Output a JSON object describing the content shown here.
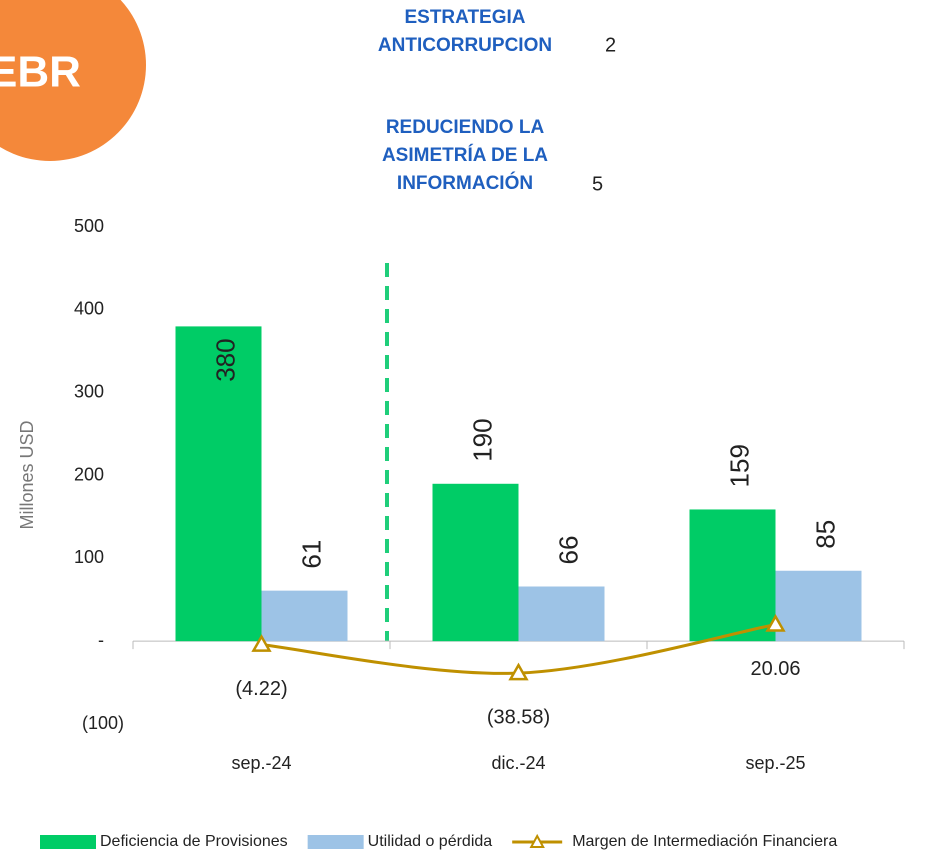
{
  "chart_data": {
    "type": "bar_line",
    "badge": "EBR",
    "annotations": [
      {
        "lines": [
          "ESTRATEGIA",
          "ANTICORRUPCION"
        ],
        "number": "2"
      },
      {
        "lines": [
          "REDUCIENDO LA",
          "ASIMETRÍA  DE LA",
          "INFORMACIÓN"
        ],
        "number": "5"
      }
    ],
    "ylabel": "Millones USD",
    "categories": [
      "sep.-24",
      "dic.-24",
      "sep.-25"
    ],
    "series": [
      {
        "name": "Deficiencia de Provisiones",
        "type": "bar",
        "color": "#00CC66",
        "values": [
          380,
          190,
          159
        ]
      },
      {
        "name": "Utilidad o pérdida",
        "type": "bar",
        "color": "#9DC3E6",
        "values": [
          61,
          66,
          85
        ]
      },
      {
        "name": "Margen de Intermediación Financiera",
        "type": "line",
        "color": "#BF9000",
        "values": [
          -4.22,
          -38.58,
          20.06
        ],
        "value_labels": [
          "(4.22)",
          "(38.58)",
          "20.06"
        ]
      }
    ],
    "ylim": [
      -100,
      500
    ],
    "yticks": [
      {
        "value": -100,
        "label": "(100)"
      },
      {
        "value": 0,
        "label": "-"
      },
      100,
      200,
      300,
      400,
      500
    ],
    "legend": "bottom"
  }
}
